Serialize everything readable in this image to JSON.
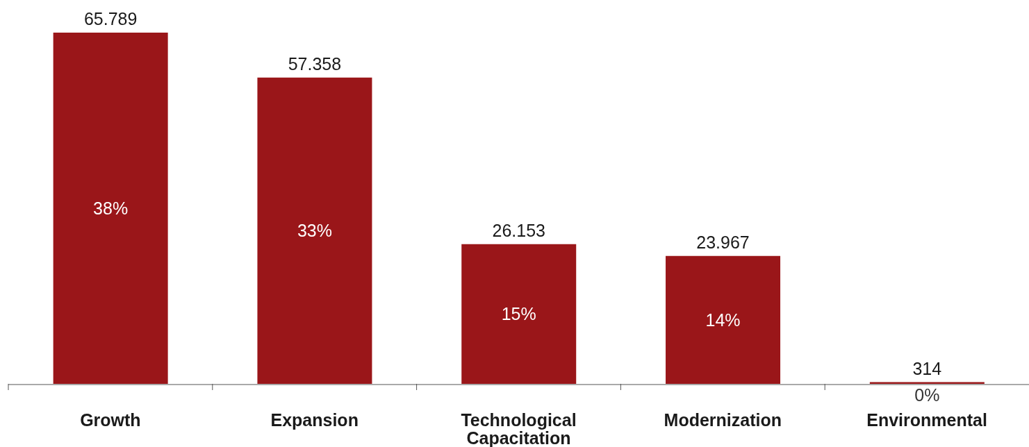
{
  "chart_data": {
    "type": "bar",
    "categories": [
      "Growth",
      "Expansion",
      "Technological Capacitation",
      "Modernization",
      "Environmental"
    ],
    "values": [
      65789,
      57358,
      26153,
      23967,
      314
    ],
    "value_labels": [
      "65.789",
      "57.358",
      "26.153",
      "23.967",
      "314"
    ],
    "color": "#9a1619",
    "annotations": [
      "38%",
      "33%",
      "15%",
      "14%",
      "0%"
    ]
  }
}
